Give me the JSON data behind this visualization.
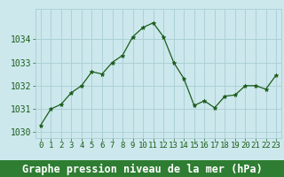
{
  "x": [
    0,
    1,
    2,
    3,
    4,
    5,
    6,
    7,
    8,
    9,
    10,
    11,
    12,
    13,
    14,
    15,
    16,
    17,
    18,
    19,
    20,
    21,
    22,
    23
  ],
  "y": [
    1030.3,
    1031.0,
    1031.2,
    1031.7,
    1032.0,
    1032.6,
    1032.5,
    1033.0,
    1033.3,
    1034.1,
    1034.5,
    1034.7,
    1034.1,
    1033.0,
    1032.3,
    1031.15,
    1031.35,
    1031.05,
    1031.55,
    1031.6,
    1032.0,
    1032.0,
    1031.85,
    1032.45
  ],
  "line_color": "#1a5c1a",
  "marker": "*",
  "marker_size": 3.5,
  "bg_color": "#cce8ec",
  "grid_color": "#a8cdd4",
  "bottom_bar_color": "#2e7d32",
  "xlabel": "Graphe pression niveau de la mer (hPa)",
  "xlabel_color": "#ffffff",
  "xlabel_fontsize": 8.5,
  "tick_color": "#1a5c1a",
  "tick_fontsize": 6.5,
  "ytick_fontsize": 7,
  "ylim": [
    1029.75,
    1035.3
  ],
  "yticks": [
    1030,
    1031,
    1032,
    1033,
    1034
  ],
  "xlim": [
    -0.5,
    23.5
  ],
  "xticks": [
    0,
    1,
    2,
    3,
    4,
    5,
    6,
    7,
    8,
    9,
    10,
    11,
    12,
    13,
    14,
    15,
    16,
    17,
    18,
    19,
    20,
    21,
    22,
    23
  ]
}
